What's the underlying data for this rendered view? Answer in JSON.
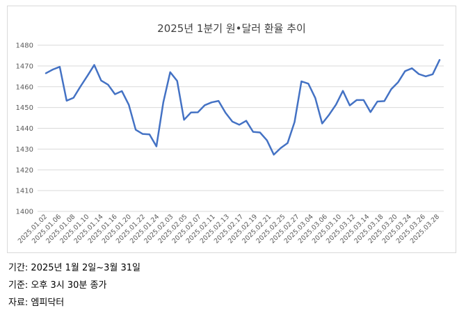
{
  "chart_data": {
    "type": "line",
    "title": "2025년 1분기 원•달러 환율 추이",
    "xlabel": "",
    "ylabel": "",
    "ylim": [
      1400,
      1480
    ],
    "yticks": [
      1400,
      1410,
      1420,
      1430,
      1440,
      1450,
      1460,
      1470,
      1480
    ],
    "grid": true,
    "legend": "none",
    "line_color": "#4472C4",
    "x_tick_labels": [
      "2025.01.02",
      "2025.01.06",
      "2025.01.08",
      "2025.01.10",
      "2025.01.14",
      "2025.01.16",
      "2025.01.20",
      "2025.01.22",
      "2025.01.24",
      "2025.02.03",
      "2025.02.05",
      "2025.02.07",
      "2025.02.11",
      "2025.02.13",
      "2025.02.17",
      "2025.02.19",
      "2025.02.21",
      "2025.02.25",
      "2025.02.27",
      "2025.03.04",
      "2025.03.06",
      "2025.03.10",
      "2025.03.12",
      "2025.03.14",
      "2025.03.18",
      "2025.03.20",
      "2025.03.24",
      "2025.03.26",
      "2025.03.28"
    ],
    "series": [
      {
        "values": [
          1466.5,
          1468.3,
          1469.6,
          1453.3,
          1454.7,
          1460.1,
          1465.2,
          1470.5,
          1463.0,
          1461.0,
          1456.4,
          1457.9,
          1451.3,
          1439.3,
          1437.3,
          1437.1,
          1431.3,
          1452.5,
          1467.0,
          1462.8,
          1444.1,
          1447.6,
          1447.7,
          1451.1,
          1452.5,
          1453.2,
          1447.5,
          1443.2,
          1441.7,
          1443.6,
          1438.3,
          1438.0,
          1434.2,
          1427.3,
          1430.5,
          1432.9,
          1443.0,
          1462.6,
          1461.5,
          1454.6,
          1442.3,
          1446.5,
          1451.4,
          1458.0,
          1451.0,
          1453.6,
          1453.6,
          1447.8,
          1452.9,
          1453.1,
          1458.8,
          1462.2,
          1467.5,
          1468.9,
          1466.1,
          1465.0,
          1466.0,
          1472.9
        ]
      }
    ]
  },
  "footer": {
    "period": "기간: 2025년 1월 2일~3월 31일",
    "basis": "기준: 오후 3시 30분 종가",
    "source": "자료: 엠피닥터"
  }
}
